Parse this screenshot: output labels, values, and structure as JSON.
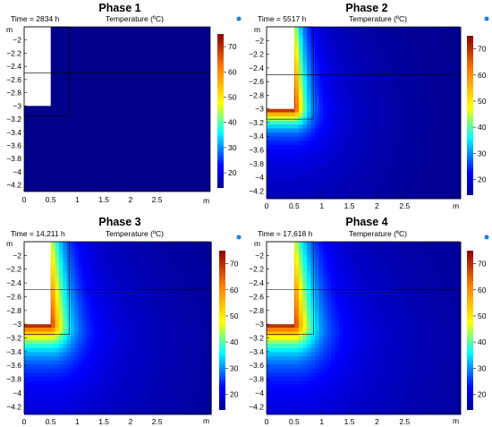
{
  "chart_data": [
    {
      "type": "heatmap",
      "title": "Phase 1",
      "time_label": "Time = 2834 h",
      "legend_title": "Temperature (ºC)",
      "x_unit": "m",
      "y_unit": "m",
      "xlim": [
        0,
        3.5
      ],
      "ylim": [
        -4.3,
        -1.8
      ],
      "x_ticks": [
        "0",
        "0.5",
        "1",
        "1.5",
        "2",
        "2.5"
      ],
      "y_ticks": [
        "-2",
        "-2.2",
        "-2.4",
        "-2.6",
        "-2.8",
        "-3",
        "-3.2",
        "-3.4",
        "-3.6",
        "-3.8",
        "-4",
        "-4.2"
      ],
      "colorbar_ticks": [
        "70",
        "60",
        "50",
        "40",
        "30",
        "20"
      ],
      "colorbar_range": [
        14,
        75
      ],
      "heated_region": {
        "x": [
          0,
          0.5
        ],
        "y_top": -1.8,
        "y_bottom": -3.0
      },
      "inner_box": {
        "x": [
          0,
          0.85
        ],
        "y": [
          -3.15,
          -1.8
        ]
      },
      "hline_y": -2.5,
      "spread": 0,
      "peak_temperature": 0
    },
    {
      "type": "heatmap",
      "title": "Phase 2",
      "time_label": "Time = 5517 h",
      "legend_title": "Temperature (ºC)",
      "x_unit": "m",
      "y_unit": "m",
      "xlim": [
        0,
        3.5
      ],
      "ylim": [
        -4.3,
        -1.8
      ],
      "x_ticks": [
        "0",
        "0.5",
        "1",
        "1.5",
        "2",
        "2.5"
      ],
      "y_ticks": [
        "-2",
        "-2.2",
        "-2.4",
        "-2.6",
        "-2.8",
        "-3",
        "-3.2",
        "-3.4",
        "-3.6",
        "-3.8",
        "-4",
        "-4.2"
      ],
      "colorbar_ticks": [
        "70",
        "60",
        "50",
        "40",
        "30",
        "20"
      ],
      "colorbar_range": [
        14,
        75
      ],
      "heated_region": {
        "x": [
          0,
          0.5
        ],
        "y_top": -1.8,
        "y_bottom": -3.0
      },
      "inner_box": {
        "x": [
          0,
          0.85
        ],
        "y": [
          -3.15,
          -1.8
        ]
      },
      "hline_y": -2.5,
      "spread": 1,
      "peak_temperature": 75
    },
    {
      "type": "heatmap",
      "title": "Phase 3",
      "time_label": "Time = 14,211 h",
      "legend_title": "Temperature (ºC)",
      "x_unit": "m",
      "y_unit": "m",
      "xlim": [
        0,
        3.5
      ],
      "ylim": [
        -4.3,
        -1.8
      ],
      "x_ticks": [
        "0",
        "0.5",
        "1",
        "1.5",
        "2",
        "2.5"
      ],
      "y_ticks": [
        "-2",
        "-2.2",
        "-2.4",
        "-2.6",
        "-2.8",
        "-3",
        "-3.2",
        "-3.4",
        "-3.6",
        "-3.8",
        "-4",
        "-4.2"
      ],
      "colorbar_ticks": [
        "70",
        "60",
        "50",
        "40",
        "30",
        "20"
      ],
      "colorbar_range": [
        14,
        75
      ],
      "heated_region": {
        "x": [
          0,
          0.5
        ],
        "y_top": -1.8,
        "y_bottom": -3.0
      },
      "inner_box": {
        "x": [
          0,
          0.85
        ],
        "y": [
          -3.15,
          -1.8
        ]
      },
      "hline_y": -2.5,
      "spread": 1.5,
      "peak_temperature": 75
    },
    {
      "type": "heatmap",
      "title": "Phase 4",
      "time_label": "Time = 17,618 h",
      "legend_title": "Temperature (ºC)",
      "x_unit": "m",
      "y_unit": "m",
      "xlim": [
        0,
        3.5
      ],
      "ylim": [
        -4.3,
        -1.8
      ],
      "x_ticks": [
        "0",
        "0.5",
        "1",
        "1.5",
        "2",
        "2.5"
      ],
      "y_ticks": [
        "-2",
        "-2.2",
        "-2.4",
        "-2.6",
        "-2.8",
        "-3",
        "-3.2",
        "-3.4",
        "-3.6",
        "-3.8",
        "-4",
        "-4.2"
      ],
      "colorbar_ticks": [
        "70",
        "60",
        "50",
        "40",
        "30",
        "20"
      ],
      "colorbar_range": [
        14,
        75
      ],
      "heated_region": {
        "x": [
          0,
          0.5
        ],
        "y_top": -1.8,
        "y_bottom": -3.0
      },
      "inner_box": {
        "x": [
          0,
          0.85
        ],
        "y": [
          -3.15,
          -1.8
        ]
      },
      "hline_y": -2.5,
      "spread": 1.6,
      "peak_temperature": 75
    }
  ]
}
